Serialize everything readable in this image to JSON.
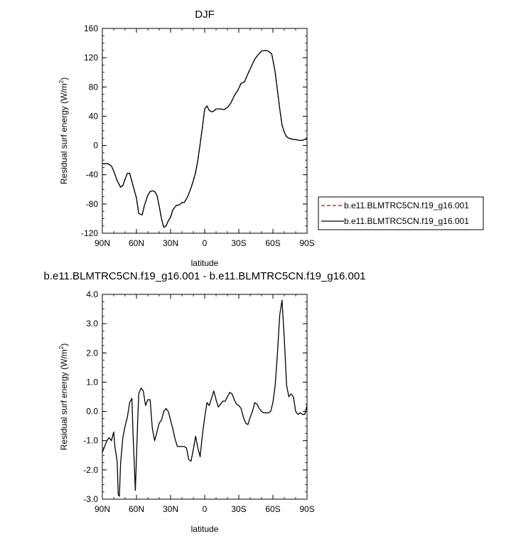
{
  "chart_data": [
    {
      "type": "line",
      "title": "DJF",
      "xlabel": "latitude",
      "ylabel_main": "Residual surf energy (W/m",
      "ylabel_sup": "2",
      "ylabel_tail": ")",
      "xlim": [
        90,
        -90
      ],
      "ylim": [
        -120,
        160
      ],
      "xticks": [
        90,
        60,
        30,
        0,
        -30,
        -60,
        -90
      ],
      "xtick_labels": [
        "90N",
        "60N",
        "30N",
        "0",
        "30S",
        "60S",
        "90S"
      ],
      "yticks": [
        -120,
        -80,
        -40,
        0,
        40,
        80,
        120,
        160
      ],
      "ytick_labels": [
        "-120",
        "-80",
        "-40",
        "0",
        "40",
        "80",
        "120",
        "160"
      ],
      "legend_position": "right",
      "series": [
        {
          "name": "b.e11.BLMTRC5CN.f19_g16.001",
          "color": "#cc0000",
          "dash": "dashed",
          "x": [
            90,
            85,
            82,
            80,
            77,
            74,
            72,
            70,
            68,
            66,
            63,
            60,
            58,
            55,
            53,
            50,
            48,
            46,
            44,
            42,
            40,
            38,
            36,
            34,
            32,
            30,
            28,
            25,
            22,
            20,
            18,
            15,
            12,
            10,
            8,
            6,
            4,
            2,
            0,
            -2,
            -4,
            -6,
            -8,
            -10,
            -14,
            -17,
            -20,
            -23,
            -26,
            -29,
            -32,
            -35,
            -38,
            -41,
            -44,
            -47,
            -50,
            -53,
            -56,
            -59,
            -62,
            -64,
            -66,
            -68,
            -70,
            -72,
            -74,
            -76,
            -78,
            -80,
            -83,
            -86,
            -88,
            -90
          ],
          "y": [
            -25,
            -25,
            -28,
            -35,
            -48,
            -57,
            -55,
            -46,
            -38,
            -38,
            -55,
            -72,
            -93,
            -95,
            -82,
            -68,
            -63,
            -62,
            -63,
            -68,
            -83,
            -100,
            -112,
            -110,
            -103,
            -98,
            -88,
            -82,
            -81,
            -78,
            -78,
            -70,
            -58,
            -48,
            -37,
            -20,
            2,
            25,
            50,
            54,
            48,
            46,
            47,
            50,
            50,
            49,
            52,
            58,
            68,
            75,
            85,
            87,
            98,
            108,
            118,
            124,
            129,
            130,
            129,
            125,
            100,
            75,
            50,
            28,
            18,
            12,
            10,
            9,
            8,
            8,
            7,
            7,
            8,
            9
          ]
        },
        {
          "name": "b.e11.BLMTRC5CN.f19_g16.001",
          "color": "#000000",
          "dash": "solid",
          "x": [
            90,
            85,
            82,
            80,
            77,
            74,
            72,
            70,
            68,
            66,
            63,
            60,
            58,
            55,
            53,
            50,
            48,
            46,
            44,
            42,
            40,
            38,
            36,
            34,
            32,
            30,
            28,
            25,
            22,
            20,
            18,
            15,
            12,
            10,
            8,
            6,
            4,
            2,
            0,
            -2,
            -4,
            -6,
            -8,
            -10,
            -14,
            -17,
            -20,
            -23,
            -26,
            -29,
            -32,
            -35,
            -38,
            -41,
            -44,
            -47,
            -50,
            -53,
            -56,
            -59,
            -62,
            -64,
            -66,
            -68,
            -70,
            -72,
            -74,
            -76,
            -78,
            -80,
            -83,
            -86,
            -88,
            -90
          ],
          "y": [
            -25,
            -25,
            -28,
            -35,
            -48,
            -57,
            -55,
            -46,
            -38,
            -38,
            -55,
            -72,
            -93,
            -95,
            -82,
            -68,
            -63,
            -62,
            -63,
            -68,
            -83,
            -100,
            -112,
            -110,
            -103,
            -98,
            -88,
            -82,
            -81,
            -78,
            -78,
            -70,
            -58,
            -48,
            -37,
            -20,
            2,
            25,
            50,
            54,
            48,
            46,
            47,
            50,
            50,
            49,
            52,
            58,
            68,
            75,
            85,
            87,
            98,
            108,
            118,
            124,
            129,
            130,
            129,
            125,
            100,
            75,
            50,
            28,
            18,
            12,
            10,
            9,
            8,
            8,
            7,
            7,
            8,
            9
          ]
        }
      ]
    },
    {
      "type": "line",
      "title": "b.e11.BLMTRC5CN.f19_g16.001 - b.e11.BLMTRC5CN.f19_g16.001",
      "xlabel": "latitude",
      "ylabel_main": "Residual surf energy (W/m",
      "ylabel_sup": "2",
      "ylabel_tail": ")",
      "xlim": [
        90,
        -90
      ],
      "ylim": [
        -3.0,
        4.0
      ],
      "xticks": [
        90,
        60,
        30,
        0,
        -30,
        -60,
        -90
      ],
      "xtick_labels": [
        "90N",
        "60N",
        "30N",
        "0",
        "30S",
        "60S",
        "90S"
      ],
      "yticks": [
        -3,
        -2,
        -1,
        0,
        1,
        2,
        3,
        4
      ],
      "ytick_labels": [
        "-3.0",
        "-2.0",
        "-1.0",
        "0.0",
        "1.0",
        "2.0",
        "3.0",
        "4.0"
      ],
      "series": [
        {
          "color": "#000000",
          "dash": "solid",
          "x": [
            90,
            88,
            86,
            84,
            82,
            80,
            79,
            77,
            76,
            75,
            74,
            72,
            70,
            68,
            66,
            64,
            63,
            62,
            61,
            60,
            59,
            58,
            56,
            54,
            52,
            50,
            48,
            46,
            44,
            42,
            40,
            38,
            36,
            34,
            32,
            30,
            28,
            26,
            24,
            22,
            20,
            18,
            16,
            14,
            12,
            10,
            8,
            6,
            4,
            2,
            0,
            -2,
            -4,
            -6,
            -8,
            -10,
            -12,
            -14,
            -16,
            -18,
            -20,
            -22,
            -24,
            -26,
            -28,
            -30,
            -32,
            -34,
            -36,
            -38,
            -40,
            -42,
            -44,
            -46,
            -48,
            -50,
            -52,
            -54,
            -56,
            -58,
            -60,
            -62,
            -64,
            -66,
            -68,
            -70,
            -72,
            -74,
            -76,
            -78,
            -80,
            -82,
            -84,
            -86,
            -88,
            -90
          ],
          "y": [
            -1.4,
            -1.2,
            -1.0,
            -0.9,
            -1.0,
            -0.7,
            -1.2,
            -1.7,
            -2.85,
            -2.9,
            -1.8,
            -0.9,
            -0.5,
            -0.2,
            0.3,
            0.45,
            -0.8,
            -1.7,
            -2.7,
            -1.6,
            -0.4,
            0.6,
            0.8,
            0.7,
            0.2,
            0.4,
            0.4,
            -0.6,
            -1.0,
            -0.7,
            -0.4,
            -0.3,
            0.0,
            0.1,
            0.0,
            -0.3,
            -0.6,
            -0.95,
            -1.2,
            -1.2,
            -1.2,
            -1.2,
            -1.25,
            -1.65,
            -1.7,
            -1.3,
            -0.85,
            -1.25,
            -1.55,
            -0.8,
            -0.2,
            0.3,
            0.2,
            0.45,
            0.7,
            0.4,
            0.15,
            0.25,
            0.35,
            0.35,
            0.5,
            0.65,
            0.6,
            0.4,
            0.25,
            0.2,
            0.1,
            -0.2,
            -0.4,
            -0.45,
            -0.2,
            0.0,
            0.3,
            0.25,
            0.1,
            0.0,
            -0.05,
            -0.05,
            -0.05,
            0.0,
            0.3,
            0.9,
            2.0,
            3.3,
            3.8,
            2.5,
            0.9,
            0.5,
            0.6,
            0.5,
            0.0,
            -0.1,
            -0.05,
            -0.1,
            -0.1,
            0.2
          ]
        }
      ]
    }
  ],
  "legend": {
    "entries": [
      {
        "label": "b.e11.BLMTRC5CN.f19_g16.001",
        "color": "#cc0000",
        "dash": "dashed"
      },
      {
        "label": "b.e11.BLMTRC5CN.f19_g16.001",
        "color": "#000000",
        "dash": "solid"
      }
    ]
  }
}
